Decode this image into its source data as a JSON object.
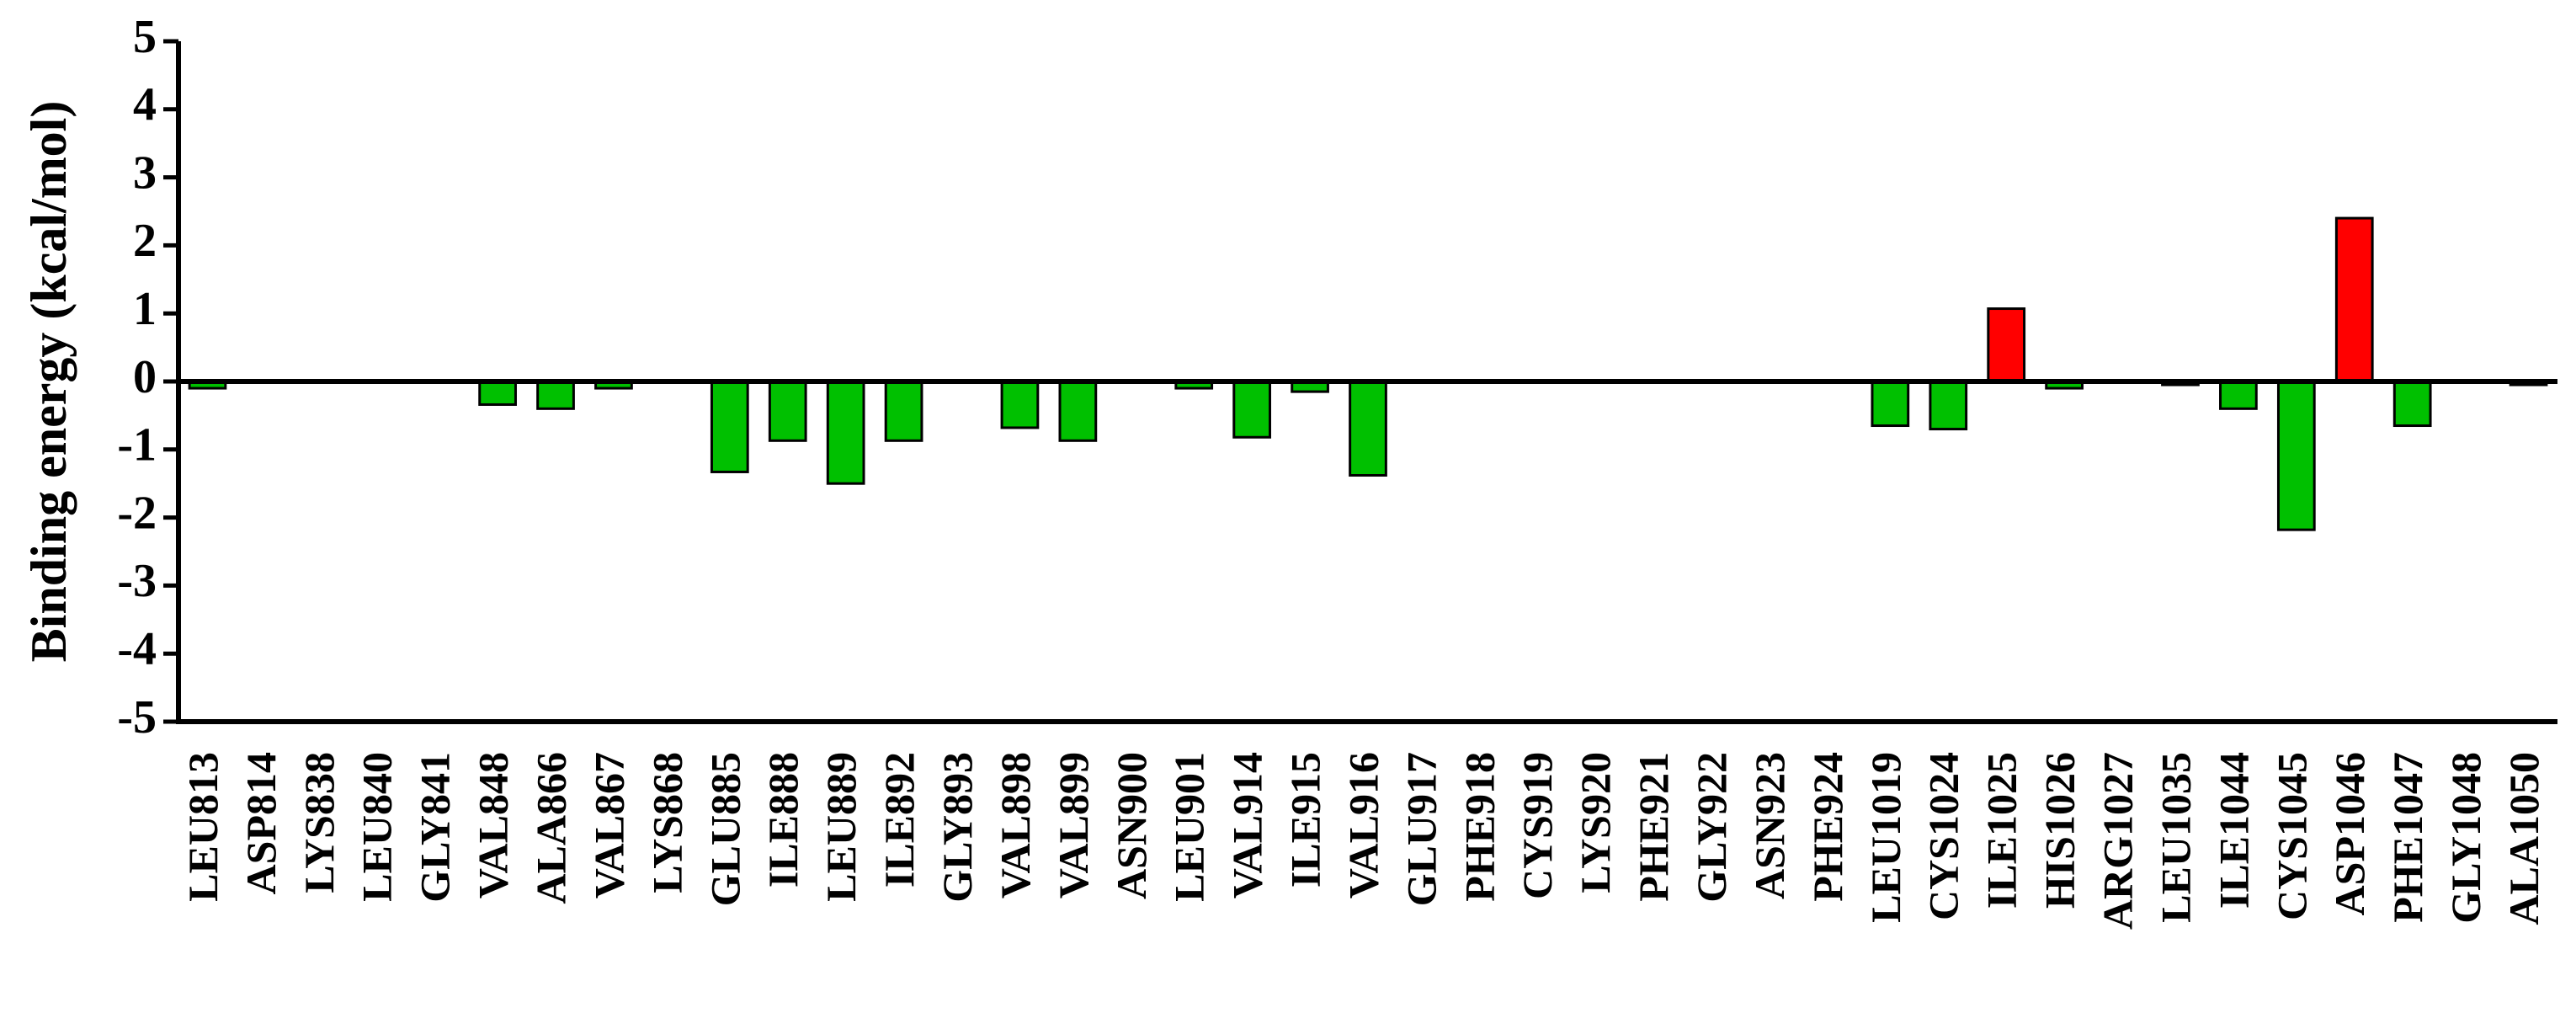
{
  "chart_data": {
    "type": "bar",
    "y_label": "Binding energy (kcal/mol)",
    "categories": [
      "LEU813",
      "ASP814",
      "LYS838",
      "LEU840",
      "GLY841",
      "VAL848",
      "ALA866",
      "VAL867",
      "LYS868",
      "GLU885",
      "ILE888",
      "LEU889",
      "ILE892",
      "GLY893",
      "VAL898",
      "VAL899",
      "ASN900",
      "LEU901",
      "VAL914",
      "ILE915",
      "VAL916",
      "GLU917",
      "PHE918",
      "CYS919",
      "LYS920",
      "PHE921",
      "GLY922",
      "ASN923",
      "PHE924",
      "LEU1019",
      "CYS1024",
      "ILE1025",
      "HIS1026",
      "ARG1027",
      "LEU1035",
      "ILE1044",
      "CYS1045",
      "ASP1046",
      "PHE1047",
      "GLY1048",
      "ALA1050"
    ],
    "values": [
      -0.1,
      0,
      0,
      0,
      0,
      -0.34,
      -0.4,
      -0.1,
      0,
      -1.33,
      -0.87,
      -1.5,
      -0.87,
      0,
      -0.68,
      -0.87,
      0,
      -0.1,
      -0.82,
      -0.15,
      -1.38,
      0,
      0,
      0,
      0,
      0,
      0,
      0,
      0,
      -0.65,
      -0.7,
      1.07,
      -0.1,
      0,
      -0.05,
      -0.4,
      -2.18,
      2.4,
      -0.65,
      0,
      -0.05
    ],
    "positive_color": "#ff0000",
    "negative_color": "#00c000",
    "ylim": [
      -5,
      5
    ],
    "yticks": [
      -5,
      -4,
      -3,
      -2,
      -1,
      0,
      1,
      2,
      3,
      4,
      5
    ],
    "grid": false
  }
}
